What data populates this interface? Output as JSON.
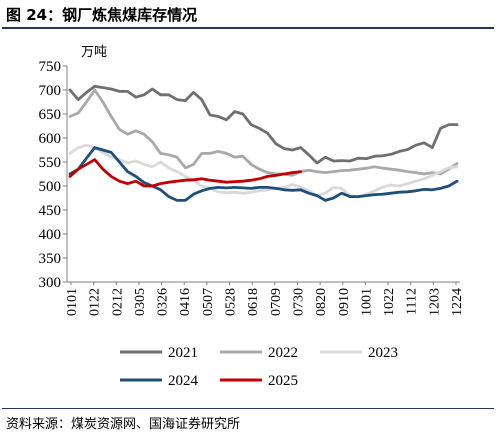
{
  "title": "图 24：钢厂炼焦煤库存情况",
  "source": "资料来源：煤炭资源网、国海证券研究所",
  "chart_data": {
    "type": "line",
    "title": "图 24：钢厂炼焦煤库存情况",
    "unit_label": "万吨",
    "ylim": [
      300,
      750
    ],
    "yticks": [
      300,
      350,
      400,
      450,
      500,
      550,
      600,
      650,
      700,
      750
    ],
    "xlabels": [
      "0101",
      "0122",
      "0212",
      "0305",
      "0326",
      "0416",
      "0507",
      "0528",
      "0618",
      "0709",
      "0730",
      "0820",
      "0910",
      "1001",
      "1022",
      "1112",
      "1203",
      "1224"
    ],
    "legend_position": "bottom",
    "grid": false,
    "series": [
      {
        "name": "2021",
        "color": "#6f6f6f",
        "points": [
          [
            0,
            700
          ],
          [
            1,
            680
          ],
          [
            2,
            695
          ],
          [
            3,
            708
          ],
          [
            4,
            705
          ],
          [
            5,
            702
          ],
          [
            6,
            697
          ],
          [
            7,
            697
          ],
          [
            8,
            685
          ],
          [
            9,
            690
          ],
          [
            10,
            702
          ],
          [
            11,
            690
          ],
          [
            12,
            690
          ],
          [
            13,
            680
          ],
          [
            14,
            678
          ],
          [
            15,
            695
          ],
          [
            16,
            680
          ],
          [
            17,
            648
          ],
          [
            18,
            645
          ],
          [
            19,
            638
          ],
          [
            20,
            655
          ],
          [
            21,
            650
          ],
          [
            22,
            628
          ],
          [
            23,
            620
          ],
          [
            24,
            610
          ],
          [
            25,
            588
          ],
          [
            26,
            578
          ],
          [
            27,
            575
          ],
          [
            28,
            580
          ],
          [
            29,
            565
          ],
          [
            30,
            548
          ],
          [
            31,
            560
          ],
          [
            32,
            552
          ],
          [
            33,
            553
          ],
          [
            34,
            552
          ],
          [
            35,
            558
          ],
          [
            36,
            557
          ],
          [
            37,
            562
          ],
          [
            38,
            563
          ],
          [
            39,
            566
          ],
          [
            40,
            572
          ],
          [
            41,
            576
          ],
          [
            42,
            585
          ],
          [
            43,
            590
          ],
          [
            44,
            580
          ],
          [
            45,
            620
          ],
          [
            46,
            628
          ],
          [
            47,
            628
          ]
        ]
      },
      {
        "name": "2022",
        "color": "#a9a9a9",
        "points": [
          [
            0,
            645
          ],
          [
            1,
            652
          ],
          [
            2,
            675
          ],
          [
            3,
            700
          ],
          [
            4,
            675
          ],
          [
            5,
            645
          ],
          [
            6,
            618
          ],
          [
            7,
            608
          ],
          [
            8,
            615
          ],
          [
            9,
            608
          ],
          [
            10,
            592
          ],
          [
            11,
            568
          ],
          [
            12,
            565
          ],
          [
            13,
            560
          ],
          [
            14,
            538
          ],
          [
            15,
            545
          ],
          [
            16,
            568
          ],
          [
            17,
            568
          ],
          [
            18,
            572
          ],
          [
            19,
            568
          ],
          [
            20,
            560
          ],
          [
            21,
            562
          ],
          [
            22,
            545
          ],
          [
            23,
            535
          ],
          [
            24,
            528
          ],
          [
            25,
            525
          ],
          [
            26,
            525
          ],
          [
            27,
            522
          ],
          [
            28,
            530
          ],
          [
            29,
            533
          ],
          [
            30,
            530
          ],
          [
            31,
            528
          ],
          [
            32,
            530
          ],
          [
            33,
            532
          ],
          [
            34,
            533
          ],
          [
            35,
            535
          ],
          [
            36,
            537
          ],
          [
            37,
            540
          ],
          [
            38,
            537
          ],
          [
            39,
            535
          ],
          [
            40,
            533
          ],
          [
            41,
            530
          ],
          [
            42,
            528
          ],
          [
            43,
            525
          ],
          [
            44,
            528
          ],
          [
            45,
            525
          ],
          [
            46,
            535
          ],
          [
            47,
            547
          ]
        ]
      },
      {
        "name": "2023",
        "color": "#d9d9d9",
        "points": [
          [
            0,
            568
          ],
          [
            1,
            580
          ],
          [
            2,
            585
          ],
          [
            3,
            580
          ],
          [
            4,
            570
          ],
          [
            5,
            560
          ],
          [
            6,
            555
          ],
          [
            7,
            548
          ],
          [
            8,
            552
          ],
          [
            9,
            545
          ],
          [
            10,
            540
          ],
          [
            11,
            550
          ],
          [
            12,
            538
          ],
          [
            13,
            530
          ],
          [
            14,
            520
          ],
          [
            15,
            512
          ],
          [
            16,
            500
          ],
          [
            17,
            495
          ],
          [
            18,
            488
          ],
          [
            19,
            486
          ],
          [
            20,
            487
          ],
          [
            21,
            485
          ],
          [
            22,
            487
          ],
          [
            23,
            490
          ],
          [
            24,
            492
          ],
          [
            25,
            495
          ],
          [
            26,
            497
          ],
          [
            27,
            503
          ],
          [
            28,
            498
          ],
          [
            29,
            490
          ],
          [
            30,
            480
          ],
          [
            31,
            485
          ],
          [
            32,
            497
          ],
          [
            33,
            495
          ],
          [
            34,
            480
          ],
          [
            35,
            477
          ],
          [
            36,
            483
          ],
          [
            37,
            490
          ],
          [
            38,
            498
          ],
          [
            39,
            502
          ],
          [
            40,
            500
          ],
          [
            41,
            505
          ],
          [
            42,
            510
          ],
          [
            43,
            515
          ],
          [
            44,
            522
          ],
          [
            45,
            530
          ],
          [
            46,
            538
          ],
          [
            47,
            540
          ]
        ]
      },
      {
        "name": "2024",
        "color": "#1f4e79",
        "points": [
          [
            0,
            525
          ],
          [
            1,
            535
          ],
          [
            2,
            558
          ],
          [
            3,
            580
          ],
          [
            4,
            575
          ],
          [
            5,
            570
          ],
          [
            6,
            550
          ],
          [
            7,
            530
          ],
          [
            8,
            520
          ],
          [
            9,
            507
          ],
          [
            10,
            500
          ],
          [
            11,
            492
          ],
          [
            12,
            478
          ],
          [
            13,
            470
          ],
          [
            14,
            470
          ],
          [
            15,
            483
          ],
          [
            16,
            490
          ],
          [
            17,
            495
          ],
          [
            18,
            497
          ],
          [
            19,
            496
          ],
          [
            20,
            497
          ],
          [
            21,
            496
          ],
          [
            22,
            495
          ],
          [
            23,
            497
          ],
          [
            24,
            497
          ],
          [
            25,
            495
          ],
          [
            26,
            492
          ],
          [
            27,
            491
          ],
          [
            28,
            492
          ],
          [
            29,
            485
          ],
          [
            30,
            480
          ],
          [
            31,
            470
          ],
          [
            32,
            475
          ],
          [
            33,
            485
          ],
          [
            34,
            478
          ],
          [
            35,
            478
          ],
          [
            36,
            480
          ],
          [
            37,
            482
          ],
          [
            38,
            483
          ],
          [
            39,
            485
          ],
          [
            40,
            487
          ],
          [
            41,
            488
          ],
          [
            42,
            490
          ],
          [
            43,
            493
          ],
          [
            44,
            492
          ],
          [
            45,
            495
          ],
          [
            46,
            500
          ],
          [
            47,
            510
          ]
        ]
      },
      {
        "name": "2025",
        "color": "#c00000",
        "points": [
          [
            0,
            520
          ],
          [
            1,
            535
          ],
          [
            2,
            545
          ],
          [
            3,
            555
          ],
          [
            4,
            535
          ],
          [
            5,
            520
          ],
          [
            6,
            510
          ],
          [
            7,
            505
          ],
          [
            8,
            510
          ],
          [
            9,
            500
          ],
          [
            10,
            500
          ],
          [
            11,
            505
          ],
          [
            12,
            508
          ],
          [
            13,
            510
          ],
          [
            14,
            512
          ],
          [
            15,
            513
          ],
          [
            16,
            515
          ],
          [
            17,
            512
          ],
          [
            18,
            510
          ],
          [
            19,
            508
          ],
          [
            20,
            509
          ],
          [
            21,
            510
          ],
          [
            22,
            512
          ],
          [
            23,
            515
          ],
          [
            24,
            520
          ],
          [
            25,
            522
          ],
          [
            26,
            525
          ],
          [
            27,
            528
          ],
          [
            28,
            530
          ]
        ]
      }
    ]
  }
}
